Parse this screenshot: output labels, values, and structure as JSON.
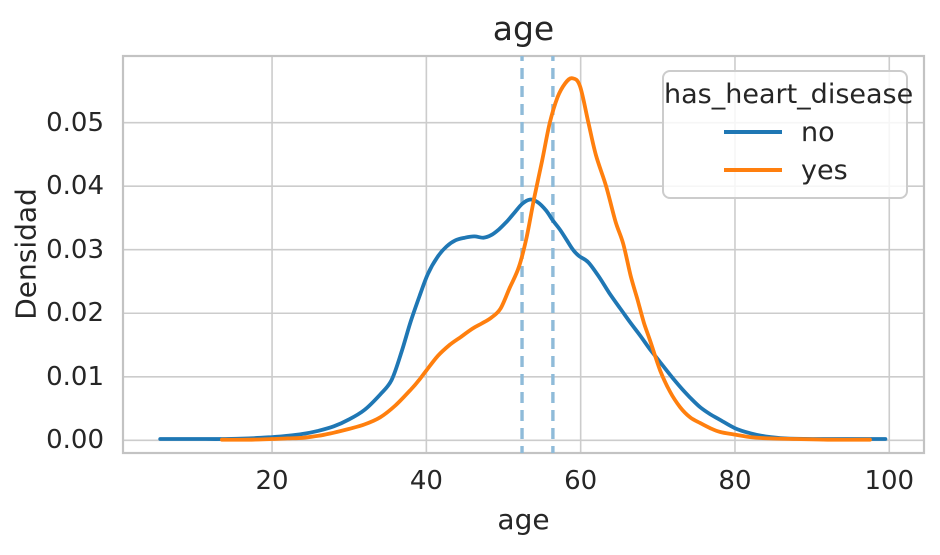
{
  "chart_data": {
    "type": "line",
    "kind": "kde-density",
    "title": "age",
    "xlabel": "age",
    "ylabel": "Densidad",
    "xlim": [
      0.68,
      104.5
    ],
    "ylim": [
      -0.002,
      0.0605
    ],
    "grid": true,
    "grid_color": "#cccccc",
    "spine_color": "#c3c3c3",
    "text_color": "#262626",
    "x_ticks": [
      20,
      40,
      60,
      80,
      100
    ],
    "x_tick_labels": [
      "20",
      "40",
      "60",
      "80",
      "100"
    ],
    "y_ticks": [
      0,
      0.01,
      0.02,
      0.03,
      0.04,
      0.05
    ],
    "y_tick_labels": [
      "0.00",
      "0.01",
      "0.02",
      "0.03",
      "0.04",
      "0.05"
    ],
    "legend": {
      "title": "has_heart_disease",
      "position": "upper right",
      "entries": [
        {
          "label": "no",
          "color": "#1f77b4"
        },
        {
          "label": "yes",
          "color": "#ff7f0e"
        }
      ]
    },
    "mean_lines": [
      {
        "x": 52.4,
        "color": "#8fbbd9",
        "style": "dashed"
      },
      {
        "x": 56.4,
        "color": "#8fbbd9",
        "style": "dashed"
      }
    ],
    "series": [
      {
        "name": "no",
        "color": "#1f77b4",
        "points": [
          [
            5.5,
            0.0002
          ],
          [
            10,
            0.0002
          ],
          [
            14,
            0.0002
          ],
          [
            17,
            0.0003
          ],
          [
            20,
            0.0005
          ],
          [
            22,
            0.0007
          ],
          [
            24,
            0.001
          ],
          [
            26,
            0.0015
          ],
          [
            28,
            0.0022
          ],
          [
            30,
            0.0033
          ],
          [
            32,
            0.0048
          ],
          [
            34,
            0.0072
          ],
          [
            35.5,
            0.0095
          ],
          [
            36.8,
            0.014
          ],
          [
            38,
            0.0188
          ],
          [
            39.2,
            0.023
          ],
          [
            40.2,
            0.0262
          ],
          [
            41.4,
            0.0288
          ],
          [
            42.6,
            0.0305
          ],
          [
            43.8,
            0.0315
          ],
          [
            45,
            0.0319
          ],
          [
            46.2,
            0.0321
          ],
          [
            47.4,
            0.0319
          ],
          [
            48.4,
            0.0323
          ],
          [
            49.4,
            0.0332
          ],
          [
            50.4,
            0.0344
          ],
          [
            51.4,
            0.0358
          ],
          [
            52.4,
            0.0372
          ],
          [
            53.4,
            0.0379
          ],
          [
            54.4,
            0.0375
          ],
          [
            55.5,
            0.0362
          ],
          [
            56.4,
            0.0346
          ],
          [
            57.3,
            0.0332
          ],
          [
            58.2,
            0.0315
          ],
          [
            59,
            0.03
          ],
          [
            59.8,
            0.029
          ],
          [
            61,
            0.028
          ],
          [
            62.5,
            0.0255
          ],
          [
            63.7,
            0.0232
          ],
          [
            65.1,
            0.0208
          ],
          [
            66.4,
            0.0186
          ],
          [
            67.7,
            0.0165
          ],
          [
            69,
            0.0143
          ],
          [
            70.3,
            0.0123
          ],
          [
            71.6,
            0.0103
          ],
          [
            72.9,
            0.0084
          ],
          [
            74.2,
            0.0067
          ],
          [
            75.5,
            0.0052
          ],
          [
            76.8,
            0.0041
          ],
          [
            78.1,
            0.0032
          ],
          [
            80,
            0.0019
          ],
          [
            82,
            0.0011
          ],
          [
            84,
            0.0006
          ],
          [
            86.5,
            0.0003
          ],
          [
            90,
            0.0002
          ],
          [
            95,
            0.0002
          ],
          [
            99.5,
            0.0002
          ]
        ]
      },
      {
        "name": "yes",
        "color": "#ff7f0e",
        "points": [
          [
            13.5,
            0.0001
          ],
          [
            17,
            0.0001
          ],
          [
            20,
            0.0002
          ],
          [
            22,
            0.0003
          ],
          [
            24,
            0.0004
          ],
          [
            26,
            0.0007
          ],
          [
            28,
            0.0012
          ],
          [
            30,
            0.0018
          ],
          [
            32,
            0.0025
          ],
          [
            34,
            0.0036
          ],
          [
            36,
            0.0055
          ],
          [
            38,
            0.008
          ],
          [
            39,
            0.0094
          ],
          [
            40,
            0.011
          ],
          [
            41.5,
            0.0133
          ],
          [
            43,
            0.015
          ],
          [
            44.5,
            0.0163
          ],
          [
            46,
            0.0176
          ],
          [
            47.2,
            0.0184
          ],
          [
            48.4,
            0.0193
          ],
          [
            49.6,
            0.0207
          ],
          [
            50.8,
            0.024
          ],
          [
            52,
            0.0273
          ],
          [
            53,
            0.032
          ],
          [
            54,
            0.0383
          ],
          [
            55,
            0.044
          ],
          [
            56,
            0.05
          ],
          [
            57,
            0.054
          ],
          [
            58,
            0.0562
          ],
          [
            58.9,
            0.057
          ],
          [
            59.9,
            0.0558
          ],
          [
            61,
            0.05
          ],
          [
            62,
            0.0448
          ],
          [
            63.3,
            0.04
          ],
          [
            64.5,
            0.0345
          ],
          [
            65.5,
            0.031
          ],
          [
            66.5,
            0.0258
          ],
          [
            67.4,
            0.022
          ],
          [
            68.2,
            0.0185
          ],
          [
            69,
            0.0157
          ],
          [
            70.3,
            0.011
          ],
          [
            71.6,
            0.0076
          ],
          [
            72.9,
            0.0052
          ],
          [
            74.2,
            0.0036
          ],
          [
            75.5,
            0.0027
          ],
          [
            76.8,
            0.0019
          ],
          [
            78.1,
            0.0013
          ],
          [
            80,
            0.0009
          ],
          [
            82,
            0.0005
          ],
          [
            84.5,
            0.0003
          ],
          [
            88,
            0.0002
          ],
          [
            92,
            0.0001
          ],
          [
            97.5,
            0.0001
          ]
        ]
      }
    ]
  }
}
